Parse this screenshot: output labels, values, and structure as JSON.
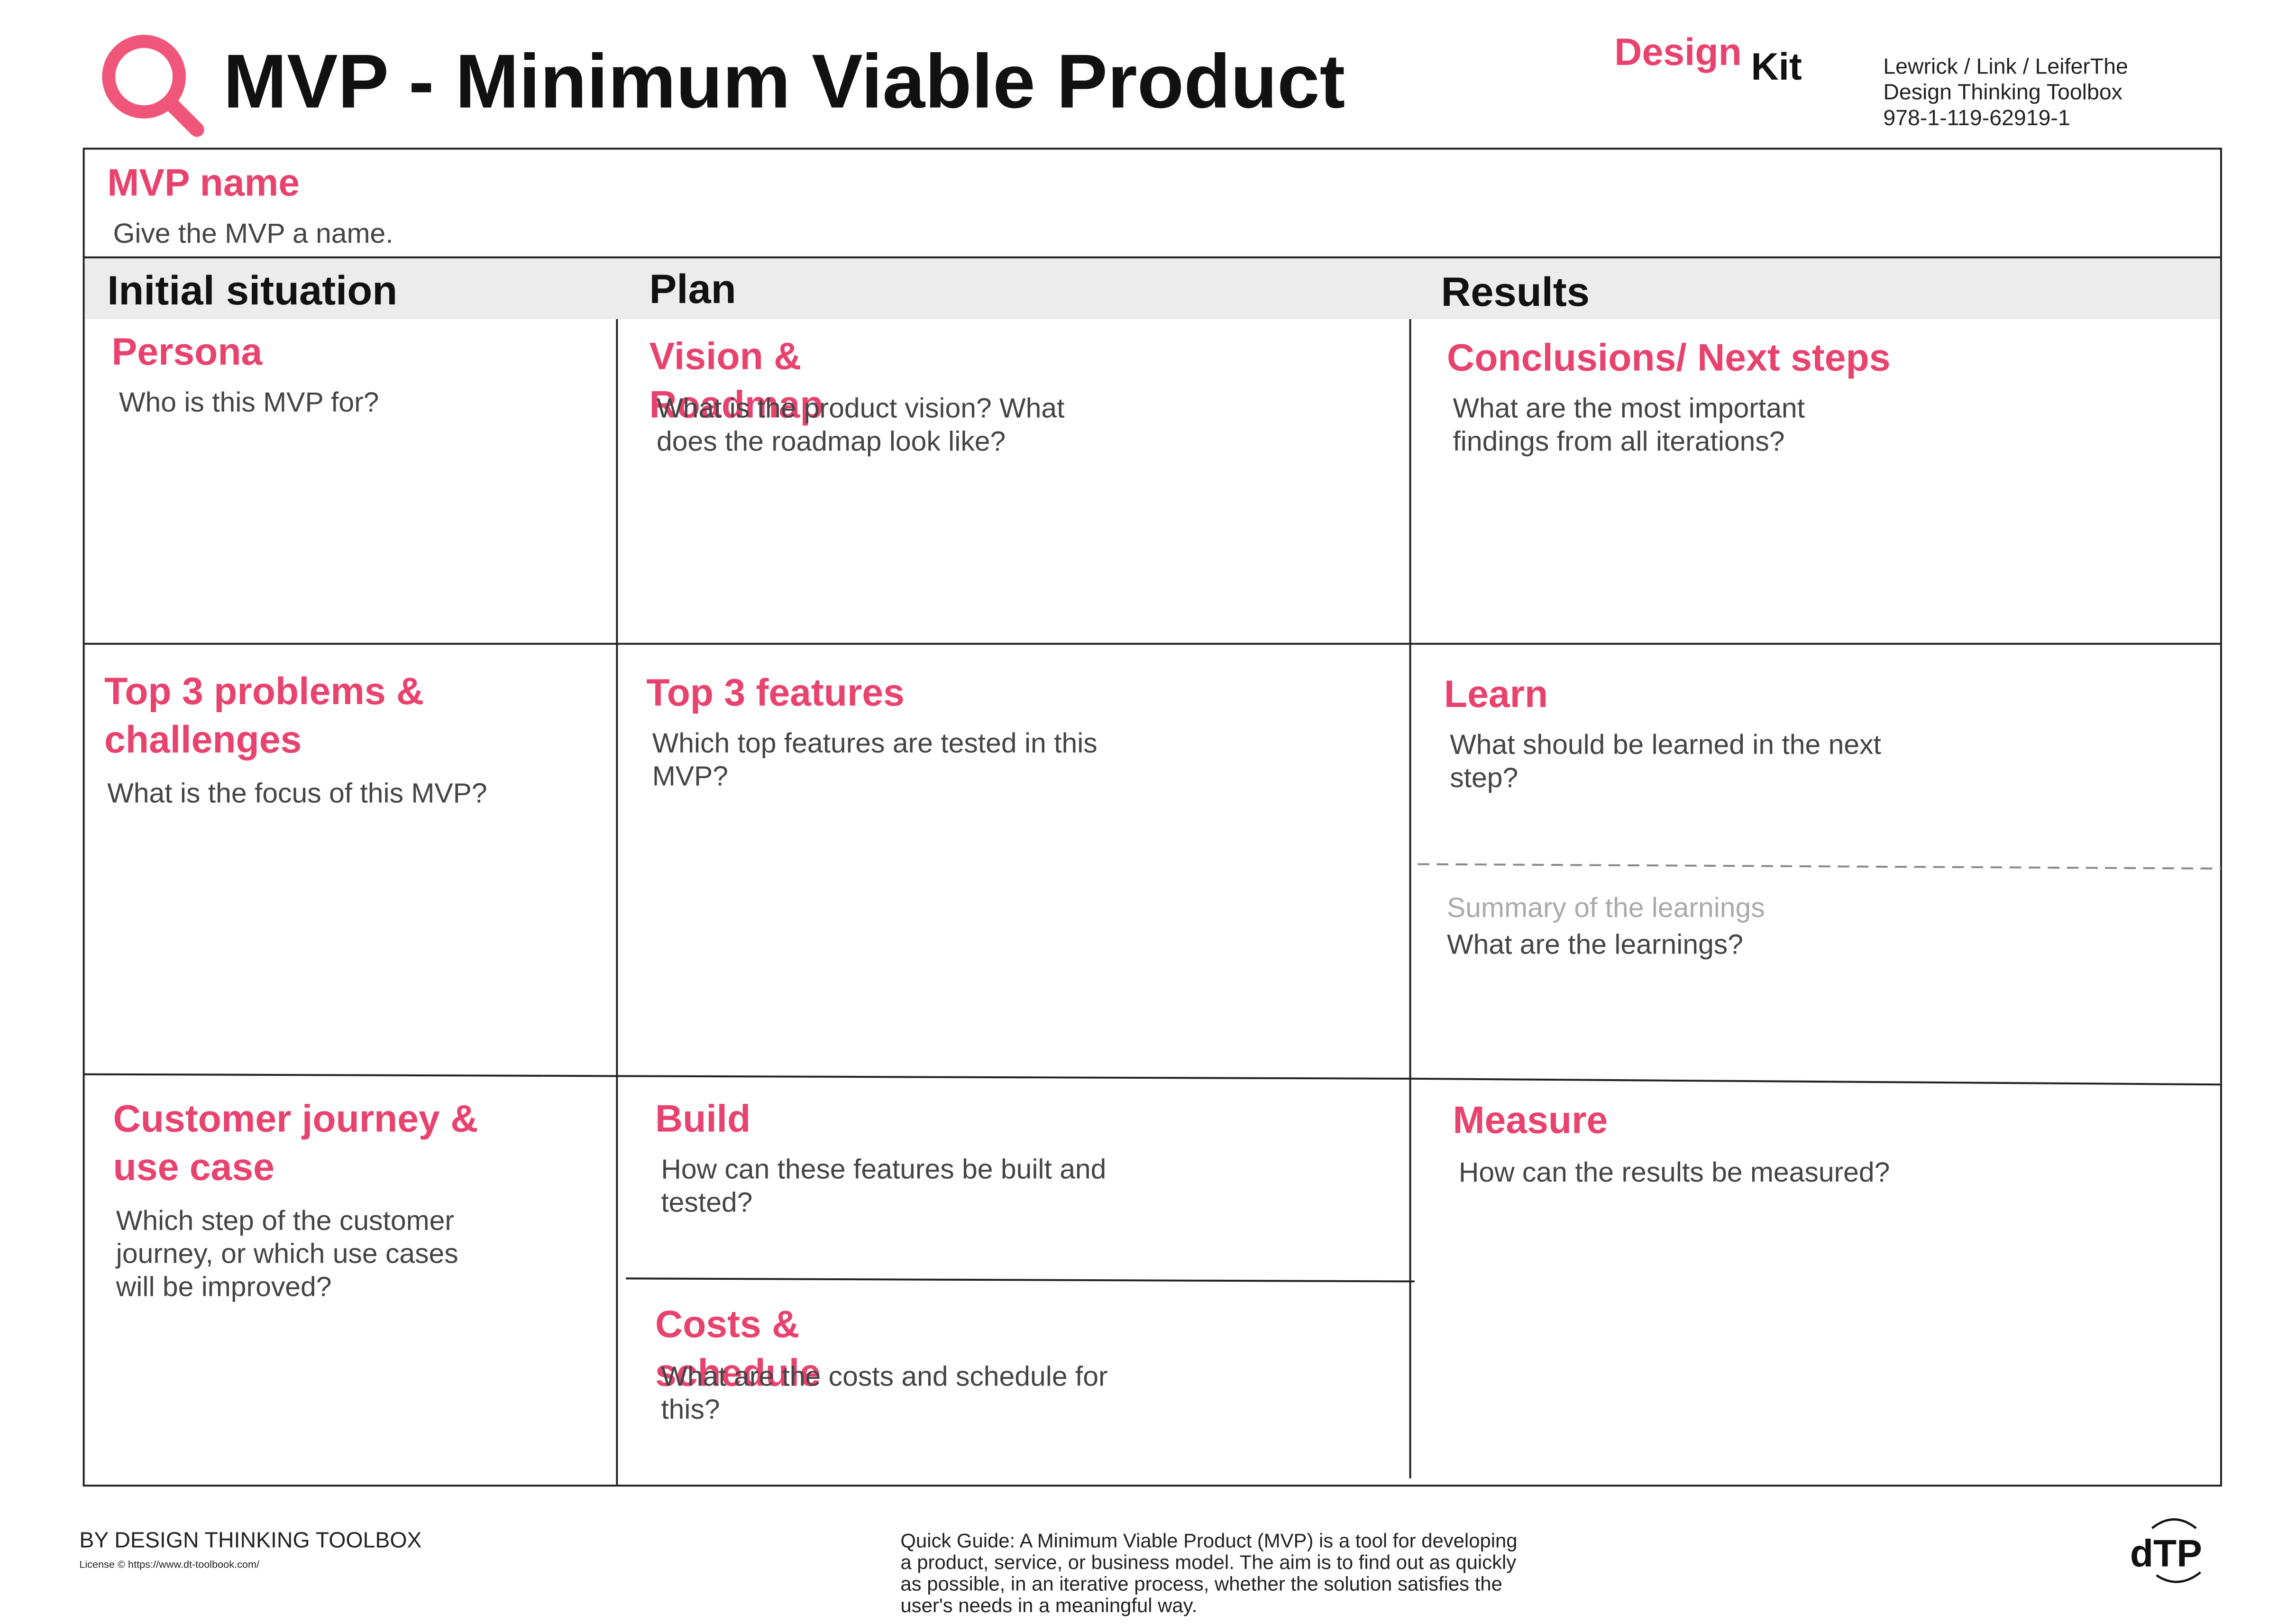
{
  "header": {
    "title": "MVP - Minimum Viable Product",
    "brand_design": "Design",
    "brand_kit": "Kit",
    "authors": [
      "Lewrick / Link / LeiferThe",
      "Design Thinking Toolbox",
      "978-1-119-62919-1"
    ]
  },
  "mvp_name": {
    "title": "MVP name",
    "prompt": "Give the MVP a name."
  },
  "columns": [
    "Initial situation",
    "Plan",
    "Results"
  ],
  "cells": [
    {
      "title": [
        "Persona"
      ],
      "prompt": [
        "Who is this MVP for?"
      ]
    },
    {
      "title": [
        "Vision &",
        "Roadmap"
      ],
      "prompt": [
        "What is the product vision? What",
        "does the roadmap look like?"
      ]
    },
    {
      "title": [
        "Conclusions/ Next steps"
      ],
      "prompt": [
        "What are the most important",
        "findings from all iterations?"
      ]
    },
    {
      "title": [
        "Top 3 problems &",
        "challenges"
      ],
      "prompt": [
        "What is the focus of this MVP?"
      ]
    },
    {
      "title": [
        "Top 3 features"
      ],
      "prompt": [
        "Which top features are tested in this",
        "MVP?"
      ]
    },
    {
      "title": [
        "Learn"
      ],
      "prompt": [
        "What should be learned in the next",
        "step?"
      ]
    },
    {
      "title": [
        "Customer journey  &",
        "use case"
      ],
      "prompt": [
        "Which step of the customer",
        "journey, or which use  cases",
        "will be improved?"
      ]
    },
    {
      "title": [
        "Build"
      ],
      "prompt": [
        "How can these features be built and",
        "tested?"
      ]
    },
    {
      "title": [
        "Measure"
      ],
      "prompt": [
        "How can the results be measured?"
      ]
    },
    {
      "title": [
        "Costs &",
        "schedule"
      ],
      "prompt": [
        "What are the costs and schedule for",
        "this?"
      ]
    }
  ],
  "learnings": {
    "title": "Summary of the learnings",
    "prompt": "What are the learnings?"
  },
  "footer": {
    "by": "BY DESIGN THINKING TOOLBOX",
    "license": "License © https://www.dt-toolbook.com/",
    "quick_guide": [
      "Quick Guide: A Minimum Viable Product (MVP) is a tool for  developing",
      "a product, service, or business model. The aim is to  find out as quickly",
      "as possible, in an iterative process, whether the solution satisfies  the",
      "user's needs  in a  meaningful way."
    ],
    "logo": "dTP"
  }
}
